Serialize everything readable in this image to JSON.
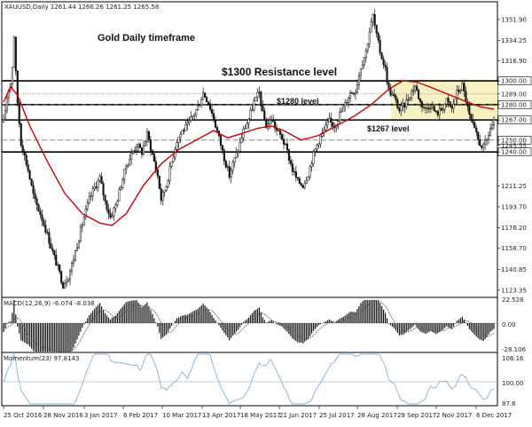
{
  "header": {
    "symbol_text": "XAUUSD,Daily  1261.44 1266.26 1261.25 1265.58"
  },
  "chart_data": [
    {
      "type": "candlestick",
      "title": "Gold Daily timeframe",
      "ylim": [
        1118,
        1366
      ],
      "y_ticks": [
        "1351.90",
        "1334.25",
        "1316.90",
        "1300.00",
        "1289.00",
        "1280.00",
        "1267.00",
        "1250.00",
        "1245.55",
        "1240.00",
        "1211.25",
        "1193.70",
        "1176.20",
        "1158.70",
        "1140.85",
        "1123.35"
      ],
      "x_ticks": [
        "25 Oct 2016",
        "28 Nov 2016",
        "3 Jan 2017",
        "6 Feb 2017",
        "10 Mar 2017",
        "13 Apr 2017",
        "18 May 2017",
        "21 Jun 2017",
        "25 Jul 2017",
        "28 Aug 2017",
        "29 Sep 2017",
        "2 Nov 2017",
        "6 Dec 2017"
      ],
      "levels": [
        {
          "value": 1300.0,
          "label": "$1300 Resistance level"
        },
        {
          "value": 1280.0,
          "label": "$1280 level"
        },
        {
          "value": 1267.0,
          "label": "$1267 level"
        },
        {
          "value": 1240.0,
          "label": ""
        }
      ],
      "price_path": [
        [
          0,
          1265
        ],
        [
          5,
          1292
        ],
        [
          9,
          1300
        ],
        [
          12,
          1338
        ],
        [
          15,
          1290
        ],
        [
          20,
          1248
        ],
        [
          28,
          1225
        ],
        [
          35,
          1200
        ],
        [
          42,
          1188
        ],
        [
          48,
          1175
        ],
        [
          55,
          1158
        ],
        [
          62,
          1142
        ],
        [
          68,
          1128
        ],
        [
          74,
          1135
        ],
        [
          80,
          1150
        ],
        [
          86,
          1168
        ],
        [
          92,
          1185
        ],
        [
          98,
          1200
        ],
        [
          104,
          1210
        ],
        [
          110,
          1218
        ],
        [
          116,
          1198
        ],
        [
          122,
          1185
        ],
        [
          128,
          1195
        ],
        [
          134,
          1212
        ],
        [
          140,
          1228
        ],
        [
          146,
          1238
        ],
        [
          152,
          1246
        ],
        [
          158,
          1240
        ],
        [
          164,
          1255
        ],
        [
          170,
          1238
        ],
        [
          176,
          1220
        ],
        [
          180,
          1200
        ],
        [
          186,
          1212
        ],
        [
          192,
          1232
        ],
        [
          198,
          1250
        ],
        [
          204,
          1258
        ],
        [
          210,
          1262
        ],
        [
          216,
          1270
        ],
        [
          222,
          1278
        ],
        [
          228,
          1290
        ],
        [
          234,
          1282
        ],
        [
          240,
          1268
        ],
        [
          246,
          1252
        ],
        [
          252,
          1235
        ],
        [
          258,
          1220
        ],
        [
          262,
          1230
        ],
        [
          268,
          1242
        ],
        [
          274,
          1258
        ],
        [
          280,
          1268
        ],
        [
          286,
          1282
        ],
        [
          292,
          1290
        ],
        [
          296,
          1272
        ],
        [
          300,
          1262
        ],
        [
          306,
          1268
        ],
        [
          312,
          1258
        ],
        [
          318,
          1252
        ],
        [
          324,
          1240
        ],
        [
          330,
          1225
        ],
        [
          336,
          1215
        ],
        [
          342,
          1212
        ],
        [
          348,
          1222
        ],
        [
          354,
          1238
        ],
        [
          360,
          1250
        ],
        [
          366,
          1258
        ],
        [
          372,
          1266
        ],
        [
          378,
          1262
        ],
        [
          384,
          1272
        ],
        [
          390,
          1280
        ],
        [
          396,
          1290
        ],
        [
          402,
          1292
        ],
        [
          408,
          1312
        ],
        [
          414,
          1325
        ],
        [
          418,
          1342
        ],
        [
          422,
          1355
        ],
        [
          426,
          1338
        ],
        [
          430,
          1325
        ],
        [
          436,
          1310
        ],
        [
          440,
          1292
        ],
        [
          446,
          1286
        ],
        [
          452,
          1275
        ],
        [
          458,
          1280
        ],
        [
          464,
          1288
        ],
        [
          470,
          1296
        ],
        [
          476,
          1282
        ],
        [
          482,
          1276
        ],
        [
          488,
          1280
        ],
        [
          494,
          1272
        ],
        [
          500,
          1276
        ],
        [
          506,
          1283
        ],
        [
          512,
          1276
        ],
        [
          518,
          1290
        ],
        [
          524,
          1296
        ],
        [
          528,
          1284
        ],
        [
          532,
          1270
        ],
        [
          538,
          1258
        ],
        [
          543,
          1248
        ],
        [
          548,
          1244
        ],
        [
          552,
          1250
        ],
        [
          556,
          1260
        ],
        [
          560,
          1265
        ]
      ],
      "moving_average": [
        [
          0,
          1282
        ],
        [
          8,
          1295
        ],
        [
          16,
          1288
        ],
        [
          30,
          1262
        ],
        [
          50,
          1232
        ],
        [
          70,
          1205
        ],
        [
          90,
          1188
        ],
        [
          110,
          1180
        ],
        [
          124,
          1178
        ],
        [
          140,
          1188
        ],
        [
          160,
          1212
        ],
        [
          180,
          1230
        ],
        [
          200,
          1242
        ],
        [
          220,
          1250
        ],
        [
          240,
          1258
        ],
        [
          256,
          1252
        ],
        [
          270,
          1255
        ],
        [
          290,
          1260
        ],
        [
          306,
          1262
        ],
        [
          320,
          1258
        ],
        [
          340,
          1250
        ],
        [
          360,
          1254
        ],
        [
          380,
          1262
        ],
        [
          400,
          1270
        ],
        [
          420,
          1280
        ],
        [
          440,
          1293
        ],
        [
          456,
          1300
        ],
        [
          472,
          1299
        ],
        [
          490,
          1294
        ],
        [
          510,
          1288
        ],
        [
          530,
          1282
        ],
        [
          545,
          1278
        ],
        [
          560,
          1276
        ]
      ]
    },
    {
      "type": "bar",
      "title": "MACD(12,26,9) -6.074 -8.038",
      "ylim": [
        -28.106,
        22.528
      ],
      "y_ticks": [
        "22.528",
        "0.00",
        "-28.106"
      ]
    },
    {
      "type": "line",
      "title": "Momentum(23) 97.8143",
      "ylim": [
        87.6,
        108.16
      ],
      "y_ticks": [
        "108.16",
        "100.00",
        "87.6"
      ]
    }
  ],
  "colors": {
    "candle": "#111111",
    "moving_average": "#cc0000",
    "zone_fill": "#f7f0c3",
    "signal_line": "#555555",
    "momentum_line": "#7fb1d9",
    "level_line": "#000000",
    "dashed_line": "#777777",
    "dotted_line": "#999999"
  }
}
